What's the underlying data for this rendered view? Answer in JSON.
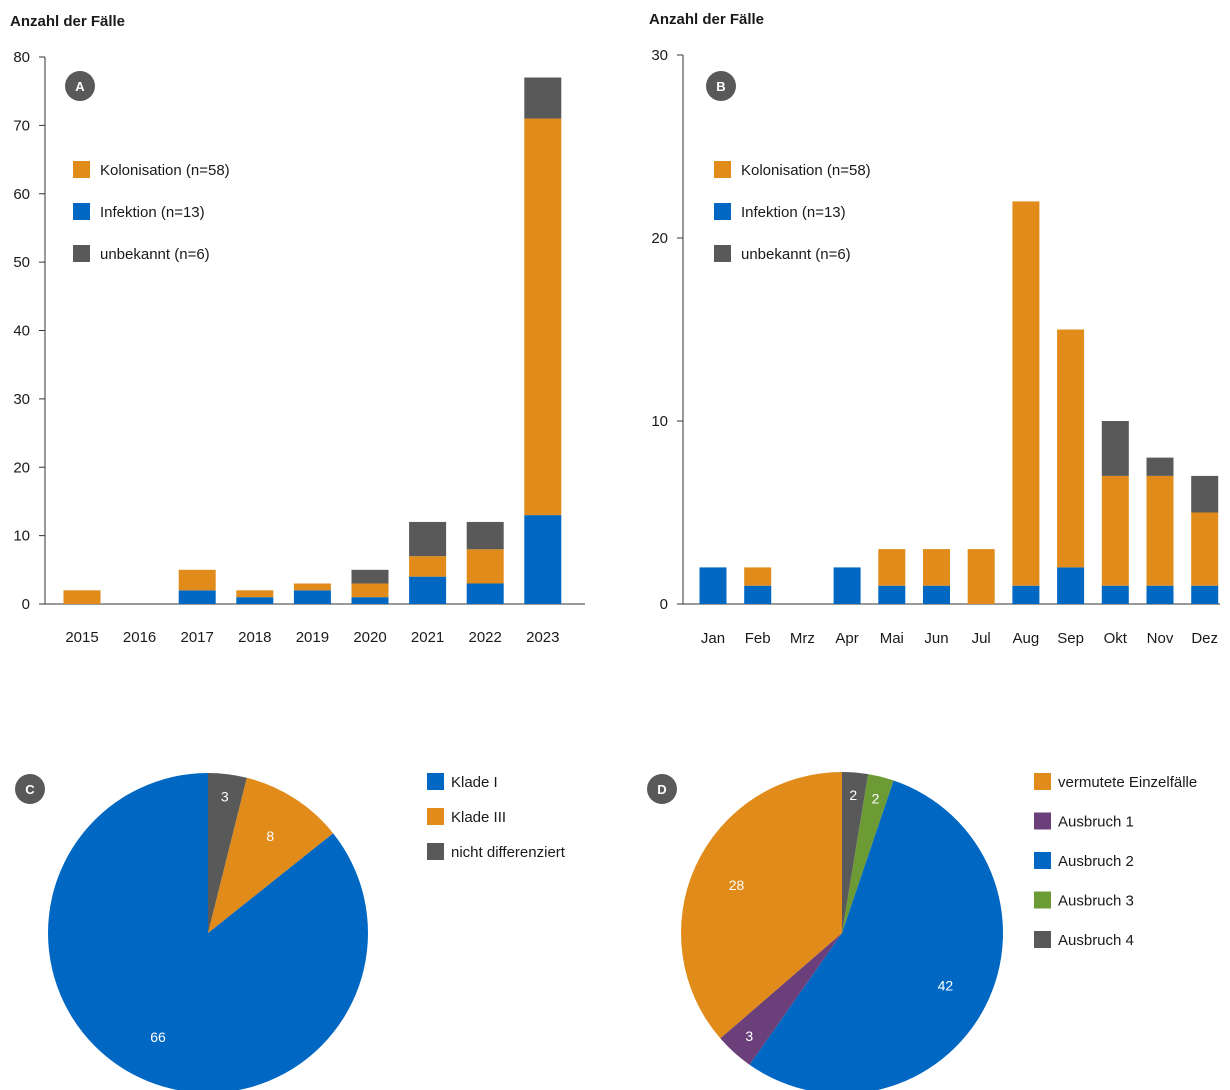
{
  "colors": {
    "orange": "#e08b1a",
    "blue": "#0068c2",
    "gray": "#595959",
    "purple": "#6a3f7a",
    "green": "#6c9a34",
    "badge": "#595959",
    "axis": "#333333"
  },
  "chart_data": [
    {
      "id": "A",
      "type": "bar",
      "stacked": true,
      "badge": "A",
      "ylabel": "Anzahl der Fälle",
      "ylim": [
        0,
        80
      ],
      "yticks": [
        0,
        10,
        20,
        30,
        40,
        50,
        60,
        70,
        80
      ],
      "categories": [
        "2015",
        "2016",
        "2017",
        "2018",
        "2019",
        "2020",
        "2021",
        "2022",
        "2023"
      ],
      "series": [
        {
          "name": "Infektion (n=13)",
          "color": "blue",
          "values": [
            0,
            0,
            2,
            1,
            2,
            1,
            4,
            3,
            13
          ]
        },
        {
          "name": "Kolonisation (n=58)",
          "color": "orange",
          "values": [
            2,
            0,
            3,
            1,
            1,
            2,
            3,
            5,
            58
          ]
        },
        {
          "name": "unbekannt (n=6)",
          "color": "gray",
          "values": [
            0,
            0,
            0,
            0,
            0,
            2,
            5,
            4,
            6
          ]
        }
      ],
      "legend": [
        {
          "label": "Kolonisation (n=58)",
          "color": "orange"
        },
        {
          "label": "Infektion (n=13)",
          "color": "blue"
        },
        {
          "label": "unbekannt (n=6)",
          "color": "gray"
        }
      ],
      "legend_placement": "top-left"
    },
    {
      "id": "B",
      "type": "bar",
      "stacked": true,
      "badge": "B",
      "ylabel": "Anzahl der Fälle",
      "ylim": [
        0,
        30
      ],
      "yticks": [
        0,
        10,
        20,
        30
      ],
      "categories": [
        "Jan",
        "Feb",
        "Mrz",
        "Apr",
        "Mai",
        "Jun",
        "Jul",
        "Aug",
        "Sep",
        "Okt",
        "Nov",
        "Dez"
      ],
      "series": [
        {
          "name": "Infektion (n=13)",
          "color": "blue",
          "values": [
            2,
            1,
            0,
            2,
            1,
            1,
            0,
            1,
            2,
            1,
            1,
            1
          ]
        },
        {
          "name": "Kolonisation (n=58)",
          "color": "orange",
          "values": [
            0,
            1,
            0,
            0,
            2,
            2,
            3,
            21,
            13,
            6,
            6,
            4
          ]
        },
        {
          "name": "unbekannt (n=6)",
          "color": "gray",
          "values": [
            0,
            0,
            0,
            0,
            0,
            0,
            0,
            0,
            0,
            3,
            1,
            2
          ]
        }
      ],
      "legend": [
        {
          "label": "Kolonisation (n=58)",
          "color": "orange"
        },
        {
          "label": "Infektion (n=13)",
          "color": "blue"
        },
        {
          "label": "unbekannt (n=6)",
          "color": "gray"
        }
      ],
      "legend_placement": "top-left"
    },
    {
      "id": "C",
      "type": "pie",
      "badge": "C",
      "slices": [
        {
          "label": "Klade I",
          "value": 66,
          "color": "blue"
        },
        {
          "label": "Klade III",
          "value": 8,
          "color": "orange"
        },
        {
          "label": "nicht differenziert",
          "value": 3,
          "color": "gray"
        }
      ],
      "legend_placement": "right"
    },
    {
      "id": "D",
      "type": "pie",
      "badge": "D",
      "slices": [
        {
          "label": "Ausbruch 4",
          "value": 2,
          "color": "gray"
        },
        {
          "label": "Ausbruch 3",
          "value": 2,
          "color": "green"
        },
        {
          "label": "Ausbruch 2",
          "value": 42,
          "color": "blue"
        },
        {
          "label": "Ausbruch 1",
          "value": 3,
          "color": "purple"
        },
        {
          "label": "vermutete  Einzelfälle",
          "value": 28,
          "color": "orange"
        }
      ],
      "legend": [
        {
          "label": "vermutete  Einzelfälle",
          "color": "orange"
        },
        {
          "label": "Ausbruch 1",
          "color": "purple"
        },
        {
          "label": "Ausbruch 2",
          "color": "blue"
        },
        {
          "label": "Ausbruch 3",
          "color": "green"
        },
        {
          "label": "Ausbruch 4",
          "color": "gray"
        }
      ],
      "legend_placement": "right"
    }
  ]
}
